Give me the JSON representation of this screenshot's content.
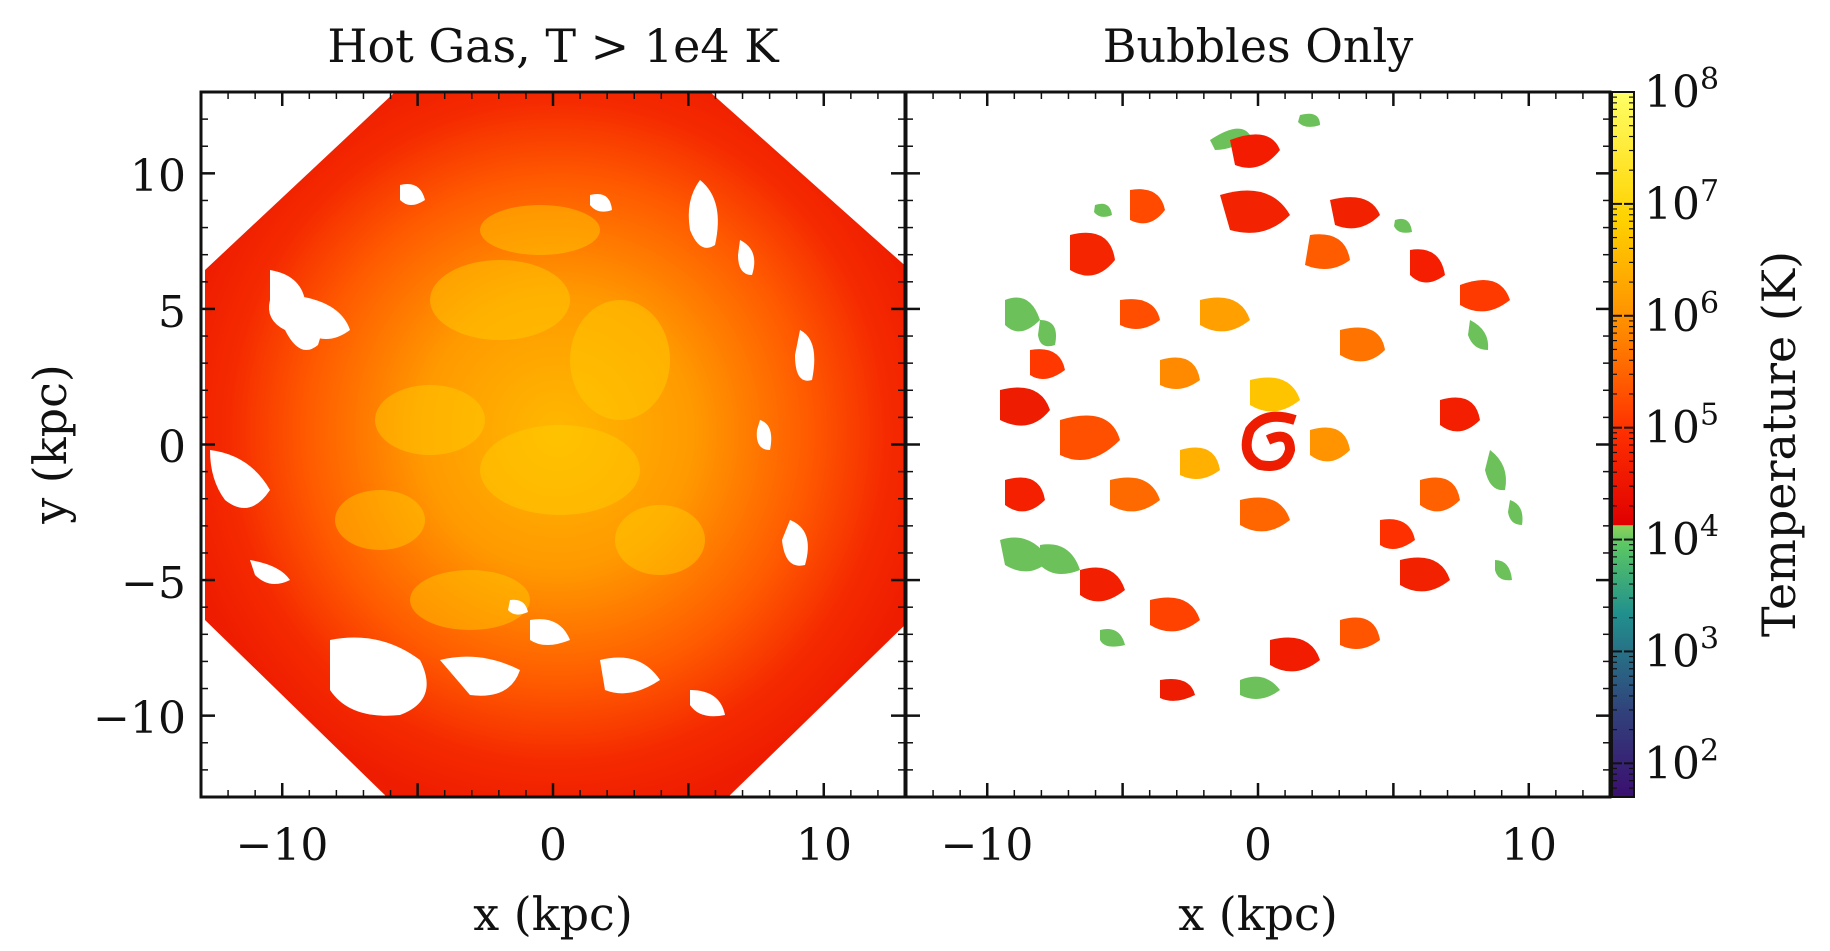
{
  "chart_data": [
    {
      "type": "heatmap",
      "title": "Hot Gas, T > 1e4 K",
      "xlabel": "x  (kpc)",
      "ylabel": "y  (kpc)",
      "xlim": [
        -13,
        13
      ],
      "ylim": [
        -13,
        13
      ],
      "xticks": [
        -10,
        0,
        10
      ],
      "xtick_labels": [
        "−10",
        "0",
        "10"
      ],
      "yticks": [
        -10,
        -5,
        0,
        5,
        10
      ],
      "ytick_labels": [
        "−10",
        "−5",
        "0",
        "5",
        "10"
      ]
    },
    {
      "type": "heatmap",
      "title": "Bubbles Only",
      "xlabel": "x  (kpc)",
      "xlim": [
        -13,
        13
      ],
      "ylim": [
        -13,
        13
      ],
      "xticks": [
        -10,
        0,
        10
      ],
      "xtick_labels": [
        "−10",
        "0",
        "10"
      ]
    }
  ],
  "colorbar": {
    "label": "Temperature  (K)",
    "scale": "log",
    "range": [
      50,
      100000000
    ],
    "tick_exponents": [
      2,
      3,
      4,
      5,
      6,
      7,
      8
    ],
    "tick_base": "10"
  },
  "colors": {
    "low": "#3b0f70",
    "mid_low": "#21908d",
    "green": "#6cc15a",
    "red": "#ff1a00",
    "orange": "#ff8c00",
    "yellow": "#ffff33"
  }
}
